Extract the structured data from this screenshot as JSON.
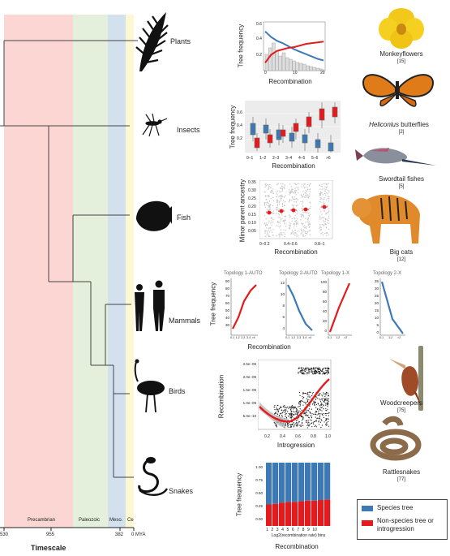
{
  "eras": [
    {
      "name": "Precambrian"
    },
    {
      "name": "Paleozoic"
    },
    {
      "name": "Meso."
    },
    {
      "name": "Ce"
    }
  ],
  "timescale": {
    "ticks": [
      "530",
      "955",
      "382",
      "0 MYA"
    ],
    "title": "Timescale"
  },
  "clades": [
    "Plants",
    "Insects",
    "Fish",
    "Mammals",
    "Birds",
    "Snakes"
  ],
  "panels": {
    "plants": {
      "ylabel": "Tree frequency",
      "xlabel": "Recombination",
      "ticks_y": [
        "0.6",
        "0.4",
        "0.2"
      ],
      "ticks_x": [
        "0",
        "10",
        "20"
      ]
    },
    "insects": {
      "ylabel": "Tree frequency",
      "xlabel": "Recombination",
      "ticks_y": [
        "0.6",
        "0.4",
        "0.2"
      ],
      "categories": [
        "0–1",
        "1–2",
        "2–3",
        "3–4",
        "4–5",
        "5–6",
        ">6"
      ]
    },
    "fish": {
      "ylabel": "Minor parent ancestry",
      "xlabel": "Recombination",
      "ticks_y": [
        "0.35",
        "0.30",
        "0.25",
        "0.20",
        "0.15",
        "0.10",
        "0.05"
      ],
      "categories": [
        "0–0.2",
        "0.4–0.6",
        "0.8–1"
      ]
    },
    "mammals": {
      "ylabel": "Tree frequency",
      "xlabel": "Recombination",
      "topologies": [
        {
          "title": "Topology 1-AUTO",
          "ticks_y": [
            "90",
            "80",
            "70",
            "60",
            "50",
            "40",
            "30"
          ],
          "ticks_x": [
            "0-1",
            "1-2",
            "2-3",
            "3-4",
            ">4"
          ]
        },
        {
          "title": "Topology 2-AUTO",
          "ticks_y": [
            "12",
            "10",
            "8",
            "6",
            "4"
          ],
          "ticks_x": [
            "0-1",
            "1-2",
            "2-3",
            "3-4",
            ">4"
          ]
        },
        {
          "title": "Topology 1-X",
          "ticks_y": [
            "100",
            "80",
            "60",
            "40",
            "20",
            "0"
          ],
          "ticks_x": [
            "0-1",
            "1-2",
            ">2"
          ]
        },
        {
          "title": "Topology 2-X",
          "ticks_y": [
            "35",
            "30",
            "25",
            "20",
            "15",
            "10",
            "5",
            "0"
          ],
          "ticks_x": [
            "0-1",
            "1-2",
            ">2"
          ]
        }
      ]
    },
    "birds": {
      "ylabel": "Recombination",
      "xlabel": "Introgression",
      "ticks_y": [
        "2.5e−09",
        "2.0e−09",
        "1.5e−09",
        "1.0e−09",
        "5.0e−10"
      ],
      "ticks_x": [
        "0.2",
        "0.4",
        "0.6",
        "0.8",
        "1.0"
      ]
    },
    "snakes": {
      "ylabel": "Tree frequency",
      "xlabel_small": "Log2(recombination rate) bins",
      "xlabel": "Recombination",
      "ticks_y": [
        "1.00",
        "0.75",
        "0.50",
        "0.25",
        "0.00"
      ],
      "ticks_x": [
        "1",
        "2",
        "3",
        "4",
        "5",
        "6",
        "7",
        "8",
        "9",
        "10"
      ]
    }
  },
  "organisms": [
    {
      "name": "Monkeyflowers",
      "cite": "[15]"
    },
    {
      "name": "Heliconius",
      "name_rest": " butterflies",
      "cite": "[2]"
    },
    {
      "name": "Swordtail fishes",
      "cite": "[5]"
    },
    {
      "name": "Big cats",
      "cite": "[12]"
    },
    {
      "name": "Woodcreepers",
      "cite": "[75]"
    },
    {
      "name": "Rattlesnakes",
      "cite": "[77]"
    }
  ],
  "legend": {
    "items": [
      {
        "label": "Species tree",
        "color": "#3d7ab5"
      },
      {
        "label": "Non-species tree or introgression",
        "color": "#e41a1c"
      }
    ]
  },
  "chart_data": [
    {
      "type": "line",
      "panel": "plants",
      "series_colors": [
        "#3d7ab5",
        "#e41a1c"
      ],
      "series": [
        {
          "x": [
            0,
            2,
            4,
            6,
            8,
            10,
            12,
            14,
            16,
            18,
            20
          ],
          "values": [
            0.5,
            0.43,
            0.38,
            0.35,
            0.31,
            0.27,
            0.24,
            0.21,
            0.18,
            0.15,
            0.13
          ]
        },
        {
          "x": [
            0,
            2,
            4,
            6,
            8,
            10,
            12,
            14,
            16,
            18,
            20
          ],
          "values": [
            0.1,
            0.2,
            0.25,
            0.27,
            0.29,
            0.3,
            0.32,
            0.34,
            0.35,
            0.36,
            0.37
          ]
        }
      ]
    },
    {
      "type": "bar",
      "panel": "snakes",
      "categories": [
        "1",
        "2",
        "3",
        "4",
        "5",
        "6",
        "7",
        "8",
        "9",
        "10"
      ],
      "series_colors": [
        "#e41a1c",
        "#3d7ab5"
      ],
      "series": [
        {
          "values": [
            0.34,
            0.35,
            0.37,
            0.38,
            0.38,
            0.39,
            0.4,
            0.4,
            0.41,
            0.42
          ]
        },
        {
          "values": [
            0.66,
            0.65,
            0.63,
            0.62,
            0.62,
            0.61,
            0.6,
            0.6,
            0.59,
            0.58
          ]
        }
      ],
      "ylim": [
        0,
        1
      ]
    }
  ]
}
